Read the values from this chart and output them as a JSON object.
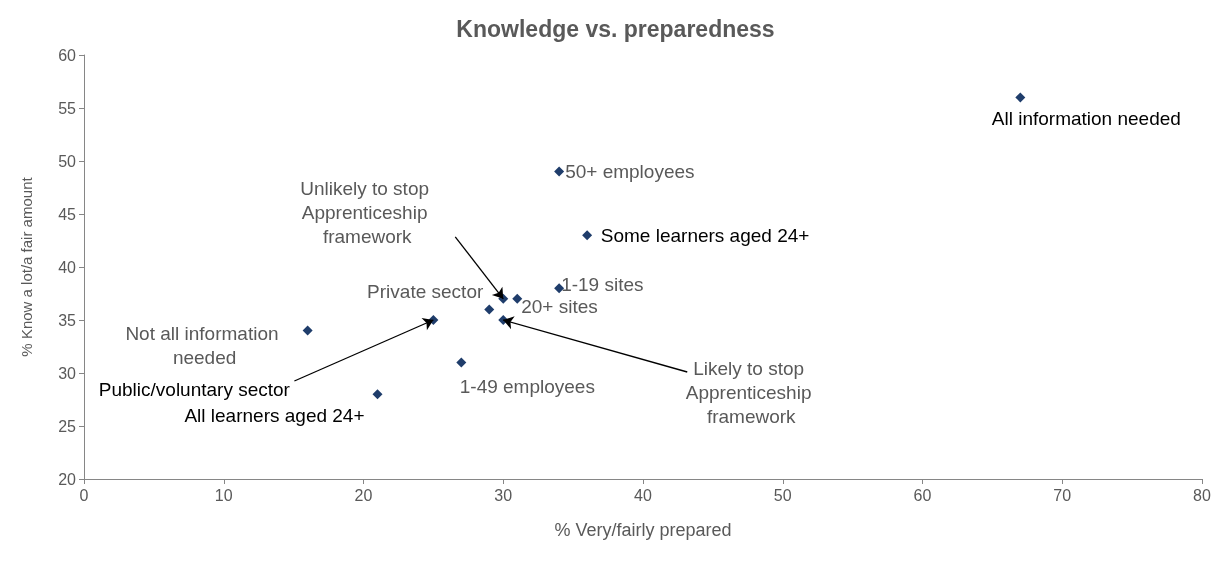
{
  "chart_data": {
    "type": "scatter",
    "title": "Knowledge vs. preparedness",
    "xlabel": "% Very/fairly prepared",
    "ylabel": "% Know a lot/a fair amount",
    "x": [
      67,
      34,
      36,
      34,
      31,
      30,
      29,
      30,
      25,
      16,
      27,
      21
    ],
    "values": [
      56,
      49,
      43,
      38,
      37,
      37,
      36,
      35,
      35,
      34,
      31,
      28
    ],
    "color": "#1f3d6b",
    "marker": "diamond",
    "xlim": [
      0,
      80
    ],
    "xticks": [
      0,
      10,
      20,
      30,
      40,
      50,
      60,
      70,
      80
    ],
    "ylim": [
      20,
      60
    ],
    "yticks": [
      20,
      25,
      30,
      35,
      40,
      45,
      50,
      55,
      60
    ],
    "annotations": [
      {
        "text": "All information needed",
        "x": 67,
        "y": 56
      },
      {
        "text": "50+ employees",
        "x": 34,
        "y": 49
      },
      {
        "text": "Some learners aged 24+",
        "x": 36,
        "y": 43
      },
      {
        "text": "1-19 sites",
        "x": 34,
        "y": 38
      },
      {
        "text": "20+ sites",
        "x": 31,
        "y": 37
      },
      "Unlikely to stop Apprenticeship framework",
      {
        "text": "Private sector",
        "x": 29,
        "y": 36
      },
      {
        "text": "Likely to stop Apprenticeship framework",
        "x": 30,
        "y": 35
      },
      {
        "text": "Public/voluntary sector",
        "x": 25,
        "y": 35
      },
      {
        "text": "Not all information needed",
        "x": 16,
        "y": 34
      },
      {
        "text": "1-49 employees",
        "x": 27,
        "y": 31
      },
      {
        "text": "All learners aged 24+",
        "x": 21,
        "y": 28
      }
    ]
  }
}
